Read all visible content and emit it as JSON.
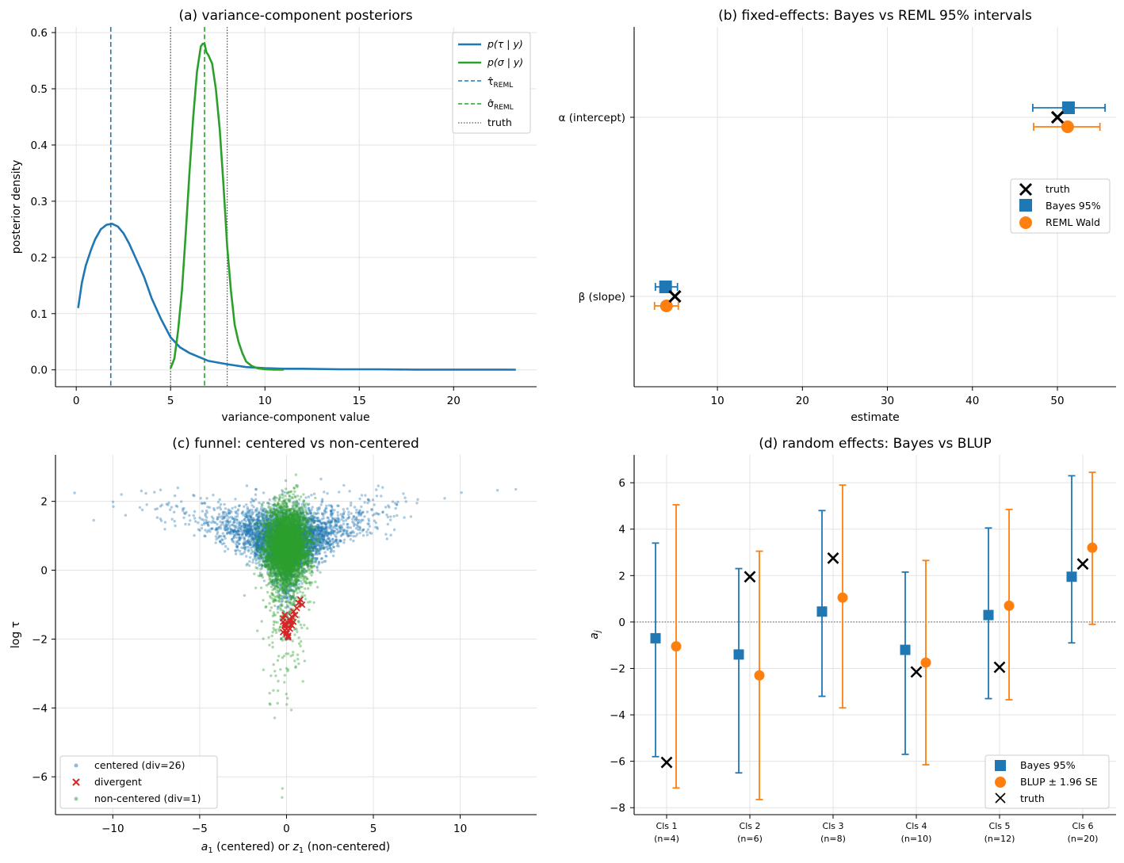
{
  "chart_data": [
    {
      "id": "a",
      "type": "line",
      "title": "(a) variance-component posteriors",
      "xlabel": "variance-component value",
      "ylabel": "posterior density",
      "xlim": [
        -1.1,
        24.4
      ],
      "ylim": [
        -0.03,
        0.61
      ],
      "xticks": [
        0,
        5,
        10,
        15,
        20
      ],
      "yticks": [
        0.0,
        0.1,
        0.2,
        0.3,
        0.4,
        0.5,
        0.6
      ],
      "grid": true,
      "legend_position": "top-right",
      "series": [
        {
          "name": "p(τ | y)",
          "color": "#1f77b4",
          "x": [
            0.1,
            0.3,
            0.5,
            0.8,
            1.0,
            1.3,
            1.6,
            1.9,
            2.2,
            2.5,
            2.8,
            3.2,
            3.6,
            4.0,
            4.5,
            5.0,
            5.5,
            6.0,
            6.5,
            7.0,
            8.0,
            9.0,
            10,
            11,
            12,
            14,
            16,
            18,
            20,
            23.3
          ],
          "y": [
            0.11,
            0.155,
            0.185,
            0.215,
            0.232,
            0.25,
            0.258,
            0.26,
            0.255,
            0.243,
            0.225,
            0.195,
            0.165,
            0.127,
            0.09,
            0.058,
            0.04,
            0.03,
            0.023,
            0.016,
            0.01,
            0.005,
            0.003,
            0.002,
            0.002,
            0.001,
            0.001,
            0.0005,
            0.0004,
            0.0003
          ]
        },
        {
          "name": "p(σ | y)",
          "color": "#2ca02c",
          "x": [
            5.0,
            5.2,
            5.4,
            5.6,
            5.8,
            6.0,
            6.2,
            6.4,
            6.6,
            6.7,
            6.8,
            6.9,
            7.0,
            7.2,
            7.4,
            7.6,
            7.8,
            8.0,
            8.2,
            8.4,
            8.6,
            8.8,
            9.0,
            9.3,
            9.6,
            10.0,
            10.5,
            11.0
          ],
          "y": [
            0.003,
            0.02,
            0.07,
            0.14,
            0.24,
            0.35,
            0.45,
            0.53,
            0.575,
            0.58,
            0.58,
            0.565,
            0.56,
            0.545,
            0.5,
            0.43,
            0.33,
            0.22,
            0.14,
            0.08,
            0.05,
            0.03,
            0.015,
            0.007,
            0.003,
            0.001,
            0.0005,
            0.0003
          ]
        }
      ],
      "vlines": [
        {
          "name": "τ̂_REML",
          "x": 1.83,
          "color": "#1f77b4",
          "style": "dashed"
        },
        {
          "name": "σ̂_REML",
          "x": 6.8,
          "color": "#2ca02c",
          "style": "dashed"
        },
        {
          "name": "truth",
          "x": [
            5.0,
            8.0
          ],
          "color": "#555555",
          "style": "dotted"
        }
      ]
    },
    {
      "id": "b",
      "type": "scatter",
      "title": "(b) fixed-effects: Bayes vs REML 95% intervals",
      "xlabel": "estimate",
      "ylabel": "",
      "xlim": [
        0.2,
        56.9
      ],
      "xticks": [
        10,
        20,
        30,
        40,
        50
      ],
      "categories": [
        "α (intercept)",
        "β (slope)"
      ],
      "grid": true,
      "legend_position": "center-right",
      "series": [
        {
          "name": "truth",
          "marker": "x",
          "color": "#000000",
          "values": [
            50.0,
            5.0
          ]
        },
        {
          "name": "Bayes 95%",
          "marker": "square",
          "color": "#1f77b4",
          "values": [
            51.3,
            3.9
          ],
          "lower": [
            47.1,
            2.7
          ],
          "upper": [
            55.6,
            5.3
          ]
        },
        {
          "name": "REML Wald",
          "marker": "circle",
          "color": "#ff7f0e",
          "values": [
            51.2,
            4.0
          ],
          "lower": [
            47.2,
            2.6
          ],
          "upper": [
            55.0,
            5.4
          ]
        }
      ]
    },
    {
      "id": "c",
      "type": "scatter",
      "title": "(c) funnel: centered vs non-centered",
      "xlabel": "a₁ (centered) or z₁ (non-centered)",
      "ylabel": "log τ",
      "xlim": [
        -13.3,
        14.4
      ],
      "ylim": [
        -7.1,
        3.35
      ],
      "xticks": [
        -10,
        -5,
        0,
        5,
        10
      ],
      "yticks": [
        -6,
        -4,
        -2,
        0,
        2
      ],
      "grid": true,
      "legend_position": "bottom-left",
      "series": [
        {
          "name": "centered (div=26)",
          "color": "#1f77b4",
          "marker": "dot",
          "n_points": 4000
        },
        {
          "name": "divergent",
          "color": "#d62728",
          "marker": "x",
          "x": [
            -0.2,
            -0.1,
            0.0,
            0.1,
            -0.2,
            0.2,
            0.3,
            0.4,
            -0.1,
            0.0,
            0.5,
            0.6,
            0.2,
            -0.1,
            0.1,
            0.3,
            0.7,
            0.8,
            0.0,
            -0.2,
            0.4,
            0.1,
            0.9,
            0.2,
            0.0,
            -0.1
          ],
          "y": [
            -1.4,
            -1.6,
            -1.8,
            -1.9,
            -1.5,
            -1.7,
            -1.6,
            -1.5,
            -1.75,
            -1.85,
            -1.3,
            -1.1,
            -1.45,
            -1.55,
            -1.65,
            -1.35,
            -0.95,
            -0.85,
            -1.7,
            -1.8,
            -1.2,
            -1.95,
            -1.0,
            -1.5,
            -1.6,
            -1.3
          ]
        },
        {
          "name": "non-centered (div=1)",
          "color": "#2ca02c",
          "marker": "dot",
          "n_points": 4000
        }
      ]
    },
    {
      "id": "d",
      "type": "scatter",
      "title": "(d) random effects: Bayes vs BLUP",
      "xlabel": "",
      "ylabel": "a_j",
      "ylim": [
        -8.3,
        7.2
      ],
      "yticks": [
        -8,
        -6,
        -4,
        -2,
        0,
        2,
        4,
        6
      ],
      "categories": [
        "Cls 1\n(n=4)",
        "Cls 2\n(n=6)",
        "Cls 3\n(n=8)",
        "Cls 4\n(n=10)",
        "Cls 5\n(n=12)",
        "Cls 6\n(n=20)"
      ],
      "hline": 0,
      "grid": true,
      "legend_position": "bottom-right",
      "series": [
        {
          "name": "Bayes 95%",
          "marker": "square",
          "color": "#1f77b4",
          "values": [
            -0.7,
            -1.4,
            0.45,
            -1.2,
            0.3,
            1.95
          ],
          "lower": [
            -5.8,
            -6.5,
            -3.2,
            -5.7,
            -3.3,
            -0.9
          ],
          "upper": [
            3.4,
            2.3,
            4.8,
            2.15,
            4.05,
            6.3
          ]
        },
        {
          "name": "BLUP ± 1.96 SE",
          "marker": "circle",
          "color": "#ff7f0e",
          "values": [
            -1.05,
            -2.3,
            1.05,
            -1.75,
            0.7,
            3.2
          ],
          "lower": [
            -7.15,
            -7.65,
            -3.7,
            -6.15,
            -3.35,
            -0.1
          ],
          "upper": [
            5.05,
            3.05,
            5.9,
            2.65,
            4.85,
            6.45
          ]
        },
        {
          "name": "truth",
          "marker": "x",
          "color": "#000000",
          "values": [
            -6.05,
            1.95,
            2.75,
            -2.15,
            -1.95,
            2.5
          ]
        }
      ]
    }
  ]
}
